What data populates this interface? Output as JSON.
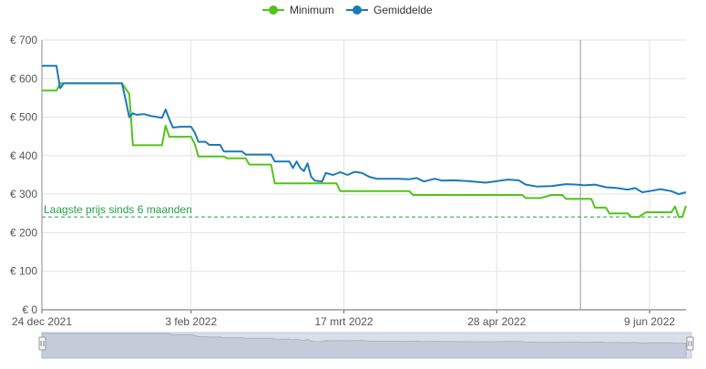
{
  "chart_data": {
    "type": "line",
    "x_unit": "date",
    "xlim": [
      "2021-12-24",
      "2022-06-19"
    ],
    "ylim": [
      0,
      700
    ],
    "y_ticks": [
      0,
      100,
      200,
      300,
      400,
      500,
      600,
      700
    ],
    "y_tick_labels": [
      "€ 0",
      "€ 100",
      "€ 200",
      "€ 300",
      "€ 400",
      "€ 500",
      "€ 600",
      "€ 700"
    ],
    "x_ticks": [
      "2021-12-24",
      "2022-02-03",
      "2022-03-17",
      "2022-04-28",
      "2022-06-09"
    ],
    "x_tick_labels": [
      "24 dec 2021",
      "3 feb 2022",
      "17 mrt 2022",
      "28 apr 2022",
      "9 jun 2022"
    ],
    "grid": true,
    "legend_position": "top-center",
    "marker_line_date": "2022-05-21",
    "reference_line": {
      "label": "Laagste prijs sinds 6 maanden",
      "value": 241,
      "color": "#22a14a"
    },
    "series": [
      {
        "name": "Minimum",
        "color": "#52c41a",
        "points": [
          [
            "2021-12-24",
            569
          ],
          [
            "2021-12-28",
            569
          ],
          [
            "2021-12-29",
            588
          ],
          [
            "2022-01-10",
            588
          ],
          [
            "2022-01-15",
            588
          ],
          [
            "2022-01-17",
            560
          ],
          [
            "2022-01-18",
            427
          ],
          [
            "2022-01-26",
            427
          ],
          [
            "2022-01-27",
            478
          ],
          [
            "2022-01-28",
            449
          ],
          [
            "2022-02-03",
            449
          ],
          [
            "2022-02-04",
            430
          ],
          [
            "2022-02-05",
            398
          ],
          [
            "2022-02-12",
            398
          ],
          [
            "2022-02-13",
            393
          ],
          [
            "2022-02-18",
            393
          ],
          [
            "2022-02-19",
            377
          ],
          [
            "2022-02-25",
            377
          ],
          [
            "2022-02-26",
            328
          ],
          [
            "2022-03-15",
            328
          ],
          [
            "2022-03-16",
            308
          ],
          [
            "2022-04-04",
            308
          ],
          [
            "2022-04-05",
            298
          ],
          [
            "2022-05-05",
            298
          ],
          [
            "2022-05-06",
            290
          ],
          [
            "2022-05-10",
            290
          ],
          [
            "2022-05-13",
            298
          ],
          [
            "2022-05-16",
            298
          ],
          [
            "2022-05-17",
            288
          ],
          [
            "2022-05-24",
            288
          ],
          [
            "2022-05-25",
            265
          ],
          [
            "2022-05-28",
            265
          ],
          [
            "2022-05-29",
            250
          ],
          [
            "2022-06-03",
            250
          ],
          [
            "2022-06-04",
            241
          ],
          [
            "2022-06-06",
            241
          ],
          [
            "2022-06-08",
            253
          ],
          [
            "2022-06-15",
            253
          ],
          [
            "2022-06-16",
            268
          ],
          [
            "2022-06-17",
            241
          ],
          [
            "2022-06-18",
            241
          ],
          [
            "2022-06-19",
            270
          ]
        ]
      },
      {
        "name": "Gemiddelde",
        "color": "#1b7ab8",
        "points": [
          [
            "2021-12-24",
            633
          ],
          [
            "2021-12-28",
            633
          ],
          [
            "2021-12-29",
            575
          ],
          [
            "2021-12-30",
            588
          ],
          [
            "2022-01-15",
            588
          ],
          [
            "2022-01-16",
            545
          ],
          [
            "2022-01-17",
            500
          ],
          [
            "2022-01-18",
            510
          ],
          [
            "2022-01-19",
            506
          ],
          [
            "2022-01-21",
            508
          ],
          [
            "2022-01-23",
            503
          ],
          [
            "2022-01-25",
            500
          ],
          [
            "2022-01-26",
            498
          ],
          [
            "2022-01-27",
            520
          ],
          [
            "2022-01-28",
            495
          ],
          [
            "2022-01-29",
            473
          ],
          [
            "2022-01-31",
            475
          ],
          [
            "2022-02-03",
            475
          ],
          [
            "2022-02-04",
            460
          ],
          [
            "2022-02-05",
            436
          ],
          [
            "2022-02-07",
            436
          ],
          [
            "2022-02-08",
            428
          ],
          [
            "2022-02-11",
            428
          ],
          [
            "2022-02-12",
            411
          ],
          [
            "2022-02-17",
            411
          ],
          [
            "2022-02-18",
            403
          ],
          [
            "2022-02-25",
            403
          ],
          [
            "2022-02-26",
            385
          ],
          [
            "2022-03-02",
            385
          ],
          [
            "2022-03-03",
            368
          ],
          [
            "2022-03-04",
            385
          ],
          [
            "2022-03-05",
            368
          ],
          [
            "2022-03-06",
            360
          ],
          [
            "2022-03-07",
            380
          ],
          [
            "2022-03-08",
            345
          ],
          [
            "2022-03-09",
            335
          ],
          [
            "2022-03-11",
            333
          ],
          [
            "2022-03-12",
            355
          ],
          [
            "2022-03-14",
            350
          ],
          [
            "2022-03-16",
            357
          ],
          [
            "2022-03-18",
            350
          ],
          [
            "2022-03-20",
            358
          ],
          [
            "2022-03-22",
            355
          ],
          [
            "2022-03-24",
            345
          ],
          [
            "2022-03-26",
            340
          ],
          [
            "2022-04-01",
            340
          ],
          [
            "2022-04-04",
            339
          ],
          [
            "2022-04-06",
            342
          ],
          [
            "2022-04-08",
            333
          ],
          [
            "2022-04-11",
            340
          ],
          [
            "2022-04-13",
            335
          ],
          [
            "2022-04-16",
            336
          ],
          [
            "2022-04-20",
            334
          ],
          [
            "2022-04-25",
            330
          ],
          [
            "2022-05-01",
            338
          ],
          [
            "2022-05-04",
            336
          ],
          [
            "2022-05-06",
            325
          ],
          [
            "2022-05-09",
            320
          ],
          [
            "2022-05-13",
            321
          ],
          [
            "2022-05-17",
            326
          ],
          [
            "2022-05-20",
            325
          ],
          [
            "2022-05-22",
            323
          ],
          [
            "2022-05-25",
            325
          ],
          [
            "2022-05-28",
            318
          ],
          [
            "2022-05-31",
            316
          ],
          [
            "2022-06-03",
            312
          ],
          [
            "2022-06-05",
            316
          ],
          [
            "2022-06-07",
            305
          ],
          [
            "2022-06-09",
            308
          ],
          [
            "2022-06-12",
            313
          ],
          [
            "2022-06-15",
            308
          ],
          [
            "2022-06-17",
            300
          ],
          [
            "2022-06-19",
            305
          ]
        ]
      }
    ]
  }
}
